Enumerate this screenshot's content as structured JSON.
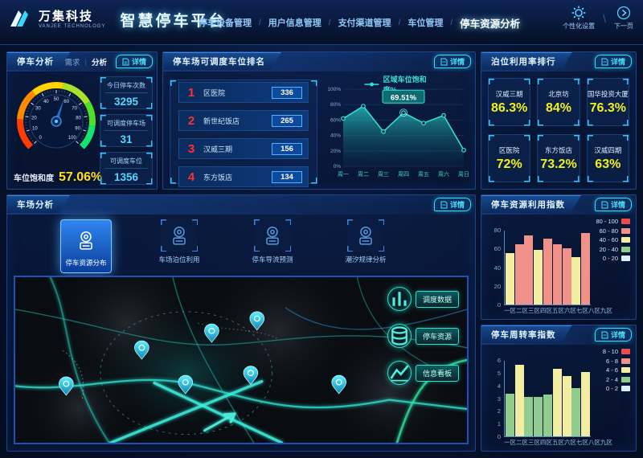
{
  "header": {
    "brand": "万集科技",
    "brand_sub": "VANJEE TECHNOLOGY",
    "app_title": "智慧停车平台",
    "nav": [
      {
        "label": "停车设备管理",
        "active": false
      },
      {
        "label": "用户信息管理",
        "active": false
      },
      {
        "label": "支付渠道管理",
        "active": false
      },
      {
        "label": "车位管理",
        "active": false
      },
      {
        "label": "停车资源分析",
        "active": true
      }
    ],
    "settings_label": "个性化设置",
    "next_label": "下一页"
  },
  "ui": {
    "detail_label": "详情"
  },
  "parking_analysis": {
    "title": "停车分析",
    "tab_demand": "需求",
    "tab_analysis": "分析",
    "gauge": {
      "label": "车位饱和度",
      "value": 57.06,
      "value_text": "57.06%",
      "min": 0,
      "max": 100,
      "tick_step": 10
    },
    "stats": [
      {
        "label": "今日停车次数",
        "value": "3295"
      },
      {
        "label": "可调度停车场",
        "value": "31"
      },
      {
        "label": "可调度车位",
        "value": "1356"
      }
    ]
  },
  "dispatch_ranking": {
    "title": "停车场可调度车位排名",
    "items": [
      {
        "rank": "1",
        "name": "区医院",
        "value": "336"
      },
      {
        "rank": "2",
        "name": "新世纪饭店",
        "value": "265"
      },
      {
        "rank": "3",
        "name": "汉威三期",
        "value": "156"
      },
      {
        "rank": "4",
        "name": "东方饭店",
        "value": "134"
      }
    ]
  },
  "berth_ranking": {
    "title": "泊位利用率排行",
    "cards": [
      {
        "name": "汉威三期",
        "value": "86.3%"
      },
      {
        "name": "北京坊",
        "value": "84%"
      },
      {
        "name": "国华投资大厦",
        "value": "76.3%"
      },
      {
        "name": "区医院",
        "value": "72%"
      },
      {
        "name": "东方饭店",
        "value": "73.2%"
      },
      {
        "name": "汉威四期",
        "value": "63%"
      }
    ]
  },
  "lot_analysis": {
    "title": "车场分析",
    "tabs": [
      {
        "label": "停车资源分布",
        "active": true
      },
      {
        "label": "车场泊位利用",
        "active": false
      },
      {
        "label": "停车导流预测",
        "active": false
      },
      {
        "label": "潮汐规律分析",
        "active": false
      }
    ],
    "map_buttons": [
      {
        "label": "调度数据",
        "icon": "bar-chart-icon"
      },
      {
        "label": "停车资源",
        "icon": "database-icon"
      },
      {
        "label": "信息看板",
        "icon": "line-chart-icon"
      }
    ]
  },
  "chart_data": [
    {
      "id": "region_saturation",
      "type": "area",
      "title": "区域车位饱和度%",
      "legend": "区域车位饱和度%",
      "legend_position": "top",
      "categories": [
        "周一",
        "周二",
        "周三",
        "周四",
        "周五",
        "周六",
        "周日"
      ],
      "values": [
        62,
        78,
        45,
        69.51,
        56,
        66,
        21
      ],
      "ylim": [
        0,
        100
      ],
      "yticks": [
        0,
        20,
        40,
        60,
        80,
        100
      ],
      "ytick_suffix": "%",
      "grid": true,
      "highlight": {
        "index": 3,
        "label": "69.51%"
      }
    },
    {
      "id": "resource_utilization_index",
      "type": "bar",
      "title": "停车资源利用指数",
      "legend_position": "right",
      "grid": false,
      "categories": [
        "一区",
        "二区",
        "三区",
        "四区",
        "五区",
        "六区",
        "七区",
        "八区",
        "九区"
      ],
      "values": [
        56,
        65,
        75,
        59,
        71,
        65,
        61,
        51,
        77
      ],
      "ylim": [
        0,
        80
      ],
      "yticks": [
        0,
        20,
        40,
        60,
        80
      ],
      "legend": [
        {
          "label": "80 - 100",
          "color": "#e84c4c"
        },
        {
          "label": "60 - 80",
          "color": "#f0928a"
        },
        {
          "label": "40 - 60",
          "color": "#f2eda0"
        },
        {
          "label": "20 - 40",
          "color": "#90cc8e"
        },
        {
          "label": "0 - 20",
          "color": "#ddeff5"
        }
      ],
      "color_ranges": [
        {
          "min": 80,
          "color": "#e84c4c"
        },
        {
          "min": 60,
          "color": "#f0928a"
        },
        {
          "min": 40,
          "color": "#f2eda0"
        },
        {
          "min": 20,
          "color": "#90cc8e"
        },
        {
          "min": 0,
          "color": "#ddeff5"
        }
      ]
    },
    {
      "id": "turnover_index",
      "type": "bar",
      "title": "停车周转率指数",
      "legend_position": "right",
      "grid": false,
      "categories": [
        "一区",
        "二区",
        "三区",
        "四区",
        "五区",
        "六区",
        "七区",
        "八区",
        "九区"
      ],
      "values": [
        3.4,
        5.65,
        3.1,
        3.1,
        3.3,
        5.35,
        4.8,
        3.8,
        5.1
      ],
      "ylim": [
        0,
        6
      ],
      "yticks": [
        0,
        1,
        2,
        3,
        4,
        5,
        6
      ],
      "legend": [
        {
          "label": "8 - 10",
          "color": "#e84c4c"
        },
        {
          "label": "6 - 8",
          "color": "#f0928a"
        },
        {
          "label": "4 - 6",
          "color": "#f2eda0"
        },
        {
          "label": "2 - 4",
          "color": "#90cc8e"
        },
        {
          "label": "0 - 2",
          "color": "#ddeff5"
        }
      ],
      "color_ranges": [
        {
          "min": 8,
          "color": "#e84c4c"
        },
        {
          "min": 6,
          "color": "#f0928a"
        },
        {
          "min": 4,
          "color": "#f2eda0"
        },
        {
          "min": 2,
          "color": "#90cc8e"
        },
        {
          "min": 0,
          "color": "#ddeff5"
        }
      ]
    }
  ],
  "colors": {
    "accent_cyan": "#35d8ff",
    "teal": "#2ee0d0",
    "value_yellow": "#f2f01e",
    "rank_red": "#ff3131",
    "panel_border": "#1c4486",
    "saturation_value": "#ffe01a"
  }
}
